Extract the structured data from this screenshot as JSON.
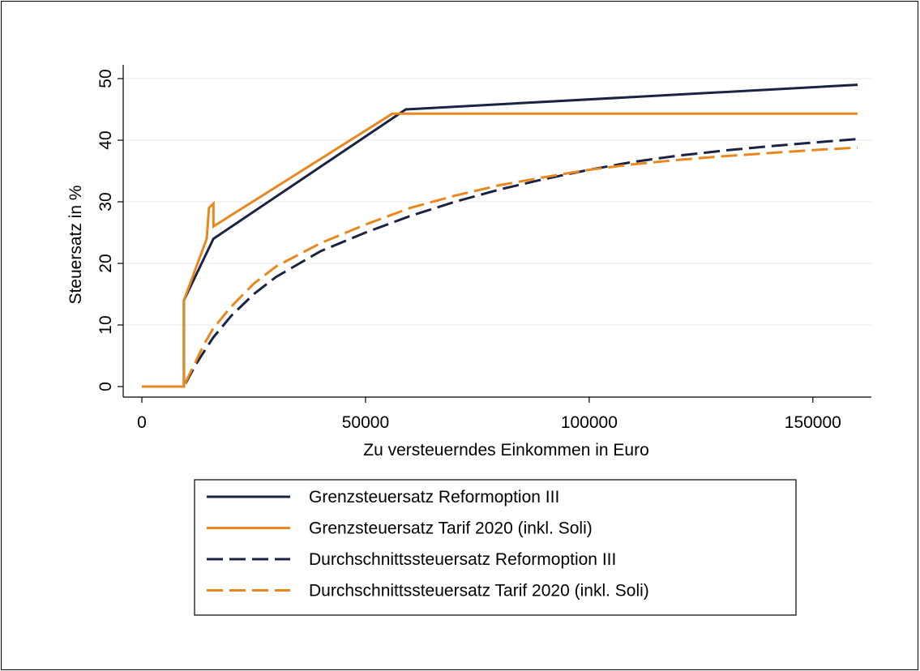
{
  "chart_data": {
    "type": "line",
    "title": "",
    "xlabel": "Zu versteuerndes Einkommen in Euro",
    "ylabel": "Steuersatz in %",
    "xlim": [
      0,
      160000
    ],
    "ylim": [
      0,
      50
    ],
    "xticks": [
      0,
      50000,
      100000,
      150000
    ],
    "yticks": [
      0,
      10,
      20,
      30,
      40,
      50
    ],
    "grid": true,
    "legend_position": "bottom",
    "series": [
      {
        "name": "Grenzsteuersatz Reformoption III",
        "style": "solid",
        "color": "#1a2442",
        "x": [
          0,
          9400,
          9401,
          16000,
          59000,
          160000
        ],
        "y": [
          0,
          0,
          14,
          24,
          45,
          49
        ]
      },
      {
        "name": "Grenzsteuersatz Tarif 2020 (inkl. Soli)",
        "style": "solid",
        "color": "#e8871e",
        "x": [
          0,
          9400,
          9401,
          14500,
          15000,
          16000,
          16001,
          56000,
          160000
        ],
        "y": [
          0,
          0,
          14,
          24,
          29,
          29.7,
          26,
          44.3,
          44.3
        ]
      },
      {
        "name": "Durchschnittssteuersatz Reformoption III",
        "style": "dashed",
        "color": "#1a2442",
        "x": [
          0,
          9400,
          10000,
          12000,
          14000,
          16000,
          20000,
          25000,
          30000,
          40000,
          50000,
          60000,
          70000,
          80000,
          90000,
          100000,
          110000,
          120000,
          130000,
          140000,
          150000,
          160000
        ],
        "y": [
          0,
          0,
          0.8,
          3.5,
          5.8,
          8,
          11.5,
          15,
          17.8,
          22,
          25,
          27.7,
          30,
          32,
          33.7,
          35.2,
          36.5,
          37.5,
          38.3,
          39,
          39.6,
          40.2
        ]
      },
      {
        "name": "Durchschnittssteuersatz Tarif 2020 (inkl. Soli)",
        "style": "dashed",
        "color": "#e8871e",
        "x": [
          0,
          9400,
          10000,
          12000,
          14000,
          16000,
          20000,
          25000,
          30000,
          40000,
          50000,
          60000,
          70000,
          80000,
          90000,
          100000,
          110000,
          120000,
          130000,
          140000,
          150000,
          160000
        ],
        "y": [
          0,
          0,
          1,
          4,
          7,
          9.5,
          13,
          16.7,
          19.5,
          23.3,
          26.3,
          29,
          31,
          32.7,
          34,
          35.2,
          36.1,
          36.8,
          37.4,
          37.9,
          38.4,
          38.8
        ]
      }
    ]
  }
}
